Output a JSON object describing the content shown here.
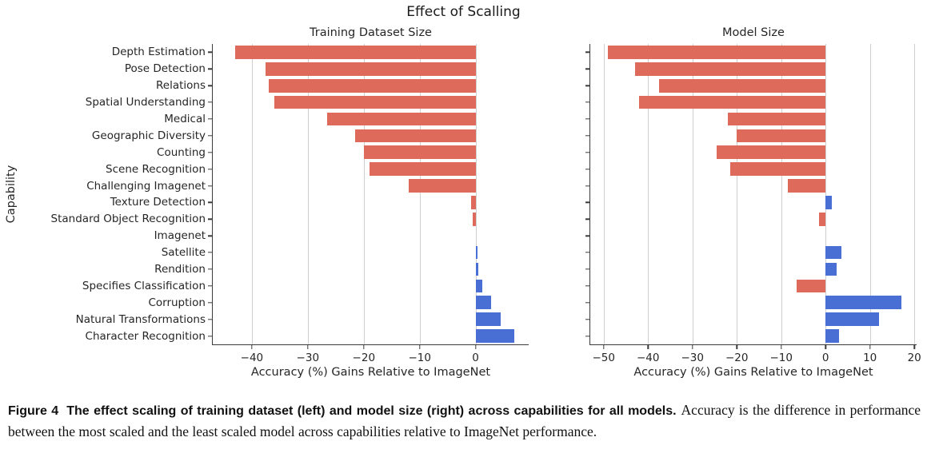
{
  "title": "Effect of Scalling",
  "ylabel": "Capability",
  "colors": {
    "negative": "#de6a5b",
    "positive": "#4a6fd4",
    "grid": "#cfcfcf",
    "spine": "#3b3b3b",
    "text": "#262626"
  },
  "caption": {
    "label": "Figure 4",
    "bold": "The effect scaling of training dataset (left) and model size (right) across capabilities for all models.",
    "regular": "Accuracy is the difference in performance between the most scaled and the least scaled model across capabilities relative to ImageNet performance."
  },
  "chart_data": [
    {
      "type": "bar",
      "orientation": "horizontal",
      "title": "Training Dataset Size",
      "xlabel": "Accuracy (%) Gains Relative to ImageNet",
      "show_category_labels": true,
      "grid": true,
      "xlim": [
        -47,
        9.5
      ],
      "xticks": [
        -40,
        -30,
        -20,
        -10,
        0
      ],
      "categories": [
        "Depth Estimation",
        "Pose Detection",
        "Relations",
        "Spatial Understanding",
        "Medical",
        "Geographic Diversity",
        "Counting",
        "Scene Recognition",
        "Challenging Imagenet",
        "Texture Detection",
        "Standard Object Recognition",
        "Imagenet",
        "Satellite",
        "Rendition",
        "Specifies Classification",
        "Corruption",
        "Natural Transformations",
        "Character Recognition"
      ],
      "values": [
        -43,
        -37.5,
        -37,
        -36,
        -26.5,
        -21.5,
        -20,
        -19,
        -12,
        -0.8,
        -0.5,
        0,
        0.3,
        0.5,
        1.2,
        2.8,
        4.5,
        7
      ]
    },
    {
      "type": "bar",
      "orientation": "horizontal",
      "title": "Model Size",
      "xlabel": "Accuracy (%) Gains Relative to ImageNet",
      "show_category_labels": false,
      "grid": true,
      "xlim": [
        -53,
        20.5
      ],
      "xticks": [
        -50,
        -40,
        -30,
        -20,
        -10,
        0,
        10,
        20
      ],
      "categories": [
        "Depth Estimation",
        "Pose Detection",
        "Relations",
        "Spatial Understanding",
        "Medical",
        "Geographic Diversity",
        "Counting",
        "Scene Recognition",
        "Challenging Imagenet",
        "Texture Detection",
        "Standard Object Recognition",
        "Imagenet",
        "Satellite",
        "Rendition",
        "Specifies Classification",
        "Corruption",
        "Natural Transformations",
        "Character Recognition"
      ],
      "values": [
        -49,
        -43,
        -37.5,
        -42,
        -22,
        -20,
        -24.5,
        -21.5,
        -8.5,
        1.5,
        -1.5,
        0,
        3.5,
        2.5,
        -6.5,
        17,
        12,
        3
      ]
    }
  ]
}
